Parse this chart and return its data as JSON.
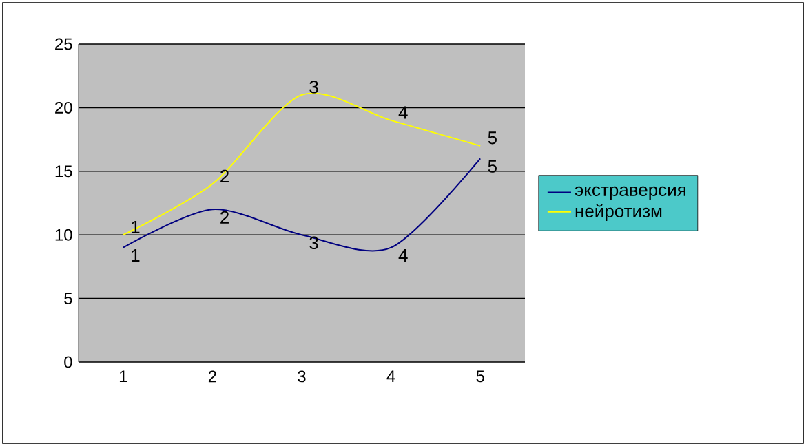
{
  "chart_data": {
    "type": "line",
    "categories": [
      "1",
      "2",
      "3",
      "4",
      "5"
    ],
    "series": [
      {
        "name": "экстраверсия",
        "color": "#000080",
        "values": [
          9,
          12,
          10,
          9,
          16
        ]
      },
      {
        "name": "нейротизм",
        "color": "#ffff00",
        "values": [
          10,
          14,
          21,
          19,
          17
        ]
      }
    ],
    "annotations": [
      {
        "text": "1",
        "x": "1",
        "y": 9
      },
      {
        "text": "2",
        "x": "2",
        "y": 12
      },
      {
        "text": "3",
        "x": "3",
        "y": 10
      },
      {
        "text": "4",
        "x": "4",
        "y": 9
      },
      {
        "text": "5",
        "x": "5",
        "y": 16
      },
      {
        "text": "1",
        "x": "1",
        "y": 10
      },
      {
        "text": "2",
        "x": "2",
        "y": 14
      },
      {
        "text": "3",
        "x": "3",
        "y": 21
      },
      {
        "text": "4",
        "x": "4",
        "y": 19
      },
      {
        "text": "5",
        "x": "5",
        "y": 17
      }
    ],
    "ylim": [
      0,
      25
    ],
    "yticks": [
      0,
      5,
      10,
      15,
      20,
      25
    ],
    "grid": "y",
    "legend": "right",
    "marker": "none",
    "line_style": "solid"
  }
}
